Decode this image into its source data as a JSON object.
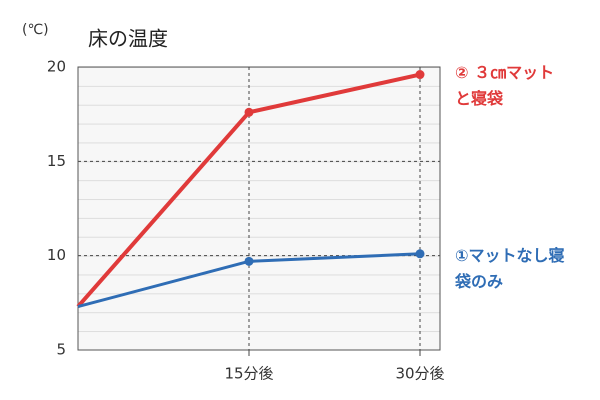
{
  "chart_data": {
    "type": "line",
    "title": "床の温度",
    "y_unit": "(℃)",
    "categories": [
      null,
      "15分後",
      "30分後"
    ],
    "series": [
      {
        "name": "② ３㎝マットと寝袋",
        "color": "#e03a3a",
        "values": [
          7.3,
          17.6,
          19.6
        ]
      },
      {
        "name": "①マットなし寝袋のみ",
        "color": "#2f6db5",
        "values": [
          7.3,
          9.7,
          10.1
        ]
      }
    ],
    "ylim": [
      5,
      20
    ],
    "yticks": [
      5,
      10,
      15,
      20
    ],
    "grid": true
  }
}
